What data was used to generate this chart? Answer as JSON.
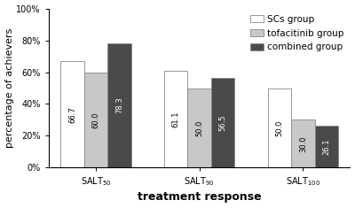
{
  "groups": [
    "SALT$_{50}$",
    "SALT$_{90}$",
    "SALT$_{100}$"
  ],
  "series_names": [
    "SCs group",
    "tofacitinib group",
    "combined group"
  ],
  "series": {
    "SCs group": [
      66.7,
      61.1,
      50.0
    ],
    "tofacitinib group": [
      60.0,
      50.0,
      30.0
    ],
    "combined group": [
      78.3,
      56.5,
      26.1
    ]
  },
  "colors": {
    "SCs group": "#ffffff",
    "tofacitinib group": "#c8c8c8",
    "combined group": "#4a4a4a"
  },
  "text_colors": {
    "SCs group": "black",
    "tofacitinib group": "black",
    "combined group": "white"
  },
  "bar_edge_color": "#888888",
  "ylabel": "percentage of achievers",
  "xlabel": "treatment response",
  "ylim": [
    0,
    100
  ],
  "ytick_labels": [
    "0%",
    "20%",
    "40%",
    "60%",
    "80%",
    "100%"
  ],
  "ytick_values": [
    0,
    20,
    40,
    60,
    80,
    100
  ],
  "bar_width": 0.25,
  "group_positions": [
    0,
    1.1,
    2.2
  ],
  "fontsize_label": 8,
  "fontsize_tick": 7,
  "fontsize_bar": 6,
  "fontsize_legend": 7.5
}
